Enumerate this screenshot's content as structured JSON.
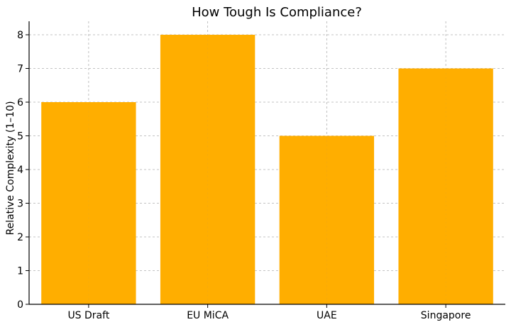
{
  "chart_data": {
    "type": "bar",
    "title": "How Tough Is Compliance?",
    "xlabel": "",
    "ylabel": "Relative Complexity (1–10)",
    "categories": [
      "US Draft",
      "EU MiCA",
      "UAE",
      "Singapore"
    ],
    "values": [
      6,
      8,
      5,
      7
    ],
    "ylim": [
      0,
      8.4
    ],
    "yticks": [
      "0",
      "1",
      "2",
      "3",
      "4",
      "5",
      "6",
      "7",
      "8"
    ],
    "grid": true,
    "legend": "none",
    "bar_color": "#FFAE00"
  }
}
